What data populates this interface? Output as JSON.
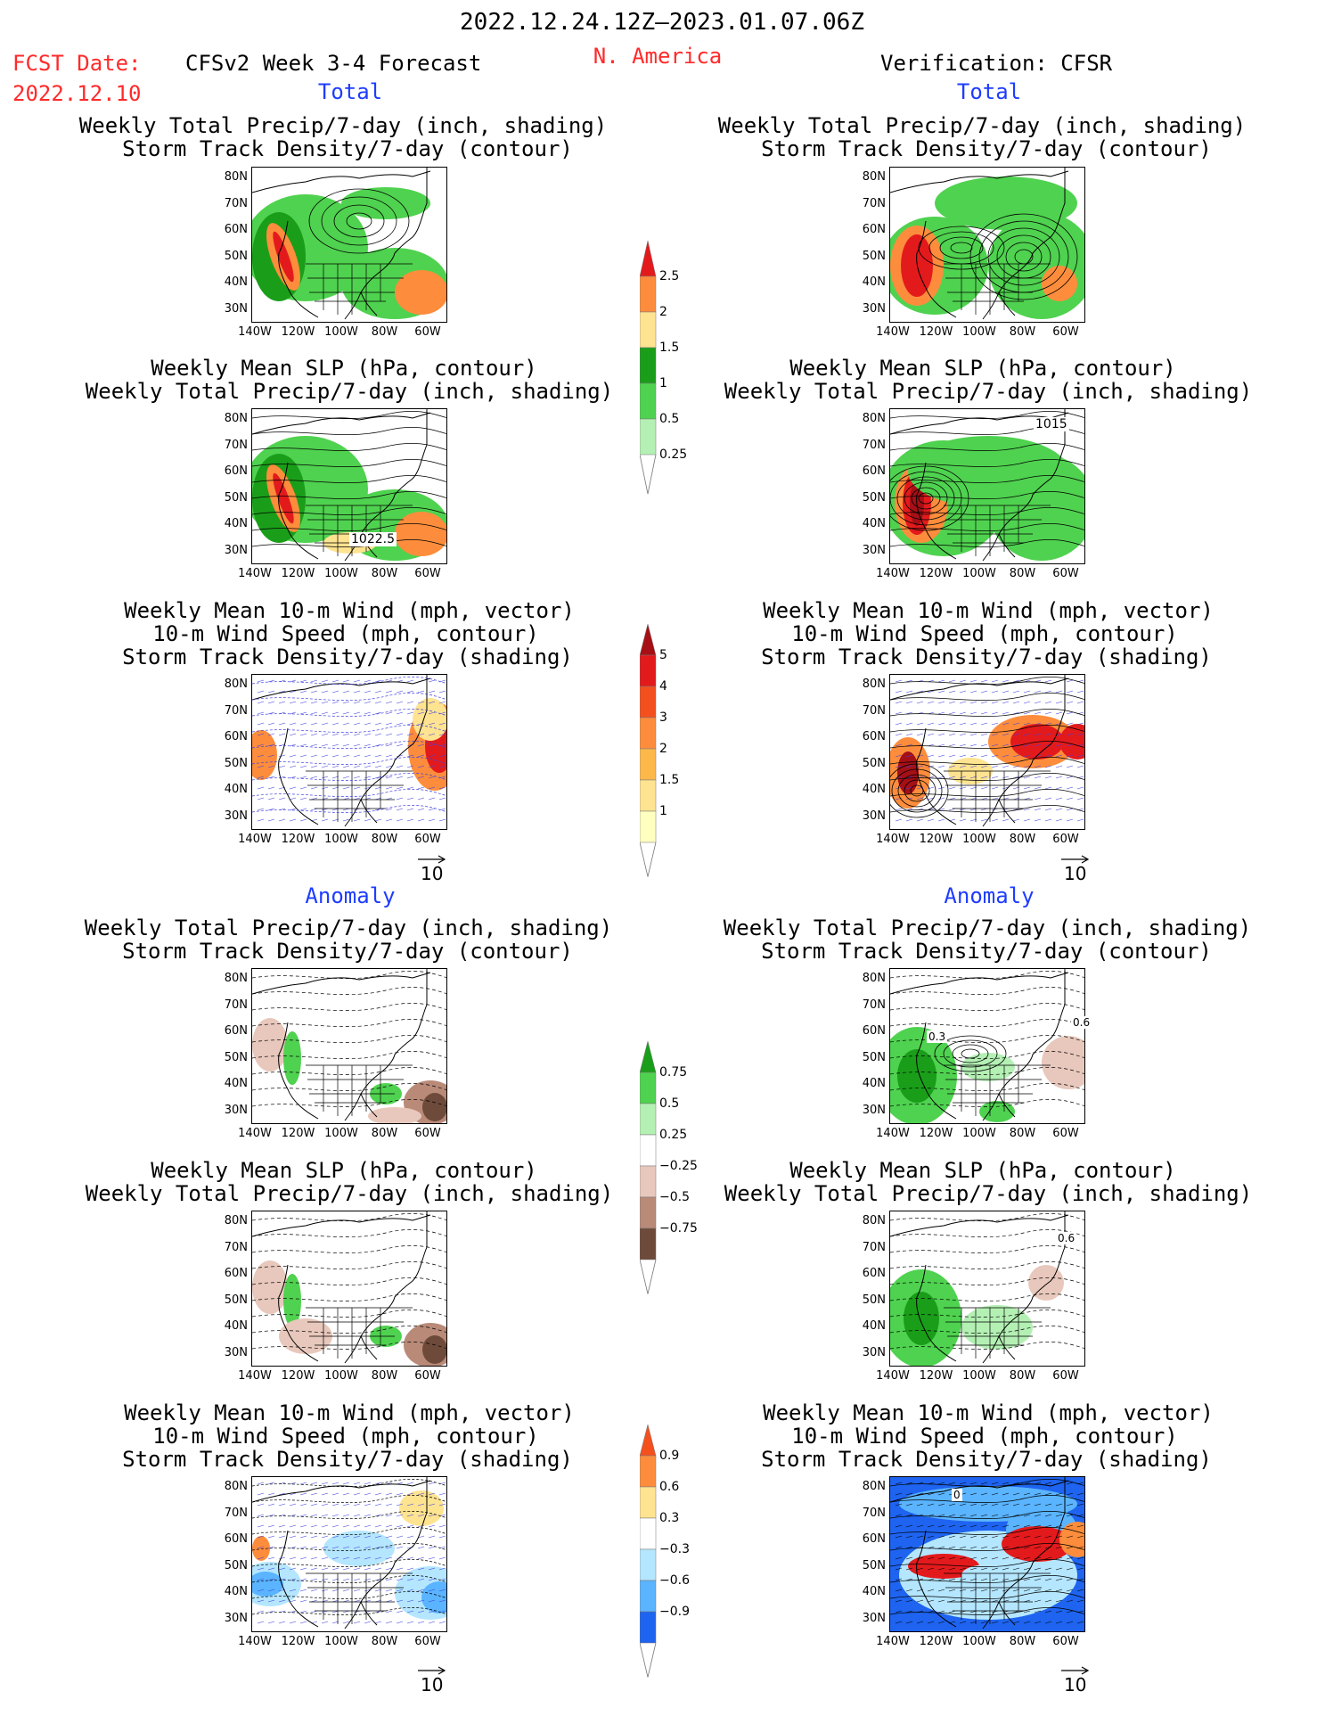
{
  "header": {
    "period": "2022.12.24.12Z–2023.01.07.06Z",
    "fcst_label": "FCST Date:",
    "fcst_date": "2022.12.10",
    "model_title": "CFSv2 Week 3-4 Forecast",
    "region": "N. America",
    "verification": "Verification: CFSR"
  },
  "sections": {
    "total": "Total",
    "anomaly": "Anomaly"
  },
  "panels": {
    "p1": [
      "Weekly Total Precip/7-day (inch, shading)",
      "Storm Track Density/7-day (contour)"
    ],
    "p2": [
      "Weekly Mean SLP (hPa, contour)",
      "Weekly Total Precip/7-day (inch, shading)"
    ],
    "p3": [
      "Weekly Mean 10-m Wind (mph, vector)",
      "10-m Wind Speed (mph, contour)",
      "Storm Track Density/7-day (shading)"
    ]
  },
  "axes": {
    "lat": [
      "80N",
      "70N",
      "60N",
      "50N",
      "40N",
      "30N"
    ],
    "lon": [
      "140W",
      "120W",
      "100W",
      "80W",
      "60W"
    ]
  },
  "contour_labels": {
    "fcst_slp_total": "1022.5",
    "cfsr_slp_total": "1015",
    "anom_a": "0.3",
    "anom_b": "0.6",
    "anom_c": "0.6",
    "anom_d": "0"
  },
  "vector_ref": "10",
  "colorbars": {
    "precip_total": {
      "labels": [
        "2.5",
        "2",
        "1.5",
        "1",
        "0.5",
        "0.25"
      ],
      "colors": [
        "#e31a1c",
        "#fd8d3c",
        "#fee391",
        "#1a9e1a",
        "#4fd24f",
        "#b4f0b4"
      ]
    },
    "storm_total": {
      "labels": [
        "5",
        "4",
        "3",
        "2",
        "1.5",
        "1"
      ],
      "colors": [
        "#a50f15",
        "#e31a1c",
        "#f4501e",
        "#fd8d3c",
        "#fdb84a",
        "#fee391",
        "#ffffc0"
      ]
    },
    "precip_anom": {
      "labels": [
        "0.75",
        "0.5",
        "0.25",
        "−0.25",
        "−0.5",
        "−0.75"
      ],
      "colors": [
        "#1a9e1a",
        "#4fd24f",
        "#b4f0b4",
        "#ffffff",
        "#e8c8bc",
        "#b98a78",
        "#6e4a3a"
      ]
    },
    "storm_anom": {
      "labels": [
        "0.9",
        "0.6",
        "0.3",
        "−0.3",
        "−0.6",
        "−0.9"
      ],
      "colors": [
        "#f4501e",
        "#fd8d3c",
        "#fee391",
        "#ffffff",
        "#b4e6ff",
        "#5ab4ff",
        "#1e64f0"
      ]
    }
  }
}
